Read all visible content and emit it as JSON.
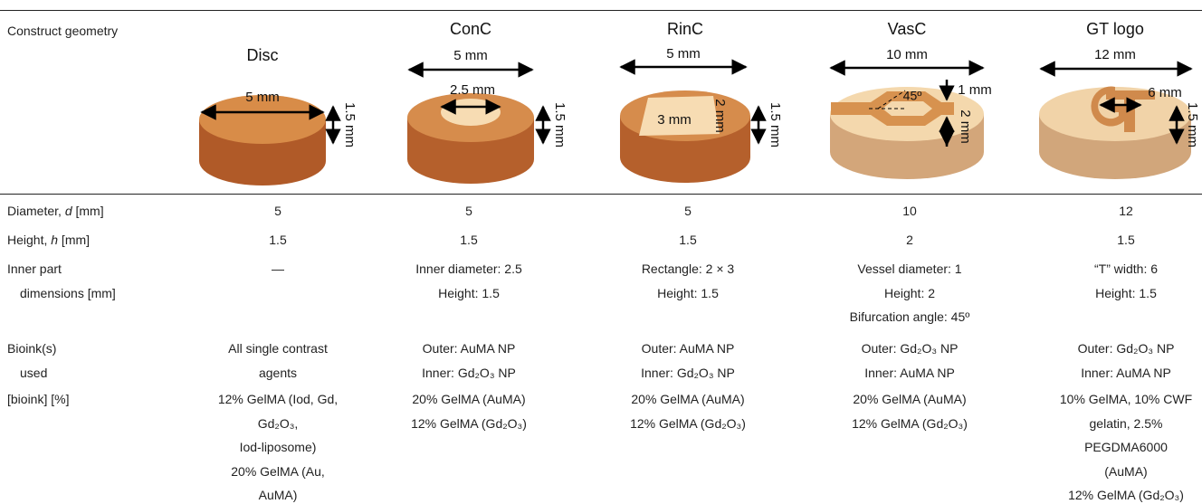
{
  "header": {
    "label": "Construct geometry"
  },
  "figures": [
    {
      "title": "Disc",
      "labels": [
        "5 mm",
        "1.5 mm"
      ]
    },
    {
      "title": "ConC",
      "labels": [
        "5 mm",
        "2.5 mm",
        "1.5 mm"
      ]
    },
    {
      "title": "RinC",
      "labels": [
        "5 mm",
        "2 mm",
        "3 mm",
        "1.5 mm"
      ]
    },
    {
      "title": "VasC",
      "labels": [
        "10 mm",
        "45º",
        "1 mm",
        "2 mm"
      ]
    },
    {
      "title": "GT logo",
      "labels": [
        "12 mm",
        "6 mm",
        "1.5 mm"
      ]
    }
  ],
  "rows": [
    {
      "label_lines": [
        [
          {
            "text": "Diameter, "
          },
          {
            "text": "d",
            "italic": true
          },
          {
            "text": " [mm]"
          }
        ]
      ],
      "cells": [
        [
          "5"
        ],
        [
          "5"
        ],
        [
          "5"
        ],
        [
          "10"
        ],
        [
          "12"
        ]
      ]
    },
    {
      "label_lines": [
        [
          {
            "text": "Height, "
          },
          {
            "text": "h",
            "italic": true
          },
          {
            "text": " [mm]"
          }
        ]
      ],
      "cells": [
        [
          "1.5"
        ],
        [
          "1.5"
        ],
        [
          "1.5"
        ],
        [
          "2"
        ],
        [
          "1.5"
        ]
      ]
    },
    {
      "label_lines": [
        [
          {
            "text": "Inner part"
          }
        ],
        [
          {
            "text": "dimensions [mm]"
          }
        ]
      ],
      "cells": [
        [
          "—"
        ],
        [
          "Inner diameter: 2.5",
          "Height: 1.5"
        ],
        [
          "Rectangle: 2 × 3",
          "Height: 1.5"
        ],
        [
          "Vessel diameter: 1",
          "Height: 2",
          "Bifurcation angle: 45º"
        ],
        [
          "“T” width: 6",
          "Height: 1.5"
        ]
      ]
    },
    {
      "label_lines": [
        [
          {
            "text": "Bioink(s)"
          }
        ],
        [
          {
            "text": "used"
          }
        ]
      ],
      "cells": [
        [
          "All single contrast",
          "agents"
        ],
        [
          "Outer: AuMA NP",
          "Inner: Gd₂O₃ NP"
        ],
        [
          "Outer: AuMA NP",
          "Inner: Gd₂O₃ NP"
        ],
        [
          "Outer: Gd₂O₃ NP",
          "Inner: AuMA NP"
        ],
        [
          "Outer: Gd₂O₃ NP",
          "Inner: AuMA NP"
        ]
      ]
    },
    {
      "label_lines": [
        [
          {
            "text": "[bioink] [%]"
          }
        ]
      ],
      "cells": [
        [
          "12% GelMA (Iod, Gd,",
          "Gd₂O₃,",
          "Iod-liposome)",
          "20% GelMA (Au,",
          "AuMA)"
        ],
        [
          "20% GelMA (AuMA)",
          "12% GelMA (Gd₂O₃)"
        ],
        [
          "20% GelMA (AuMA)",
          "12% GelMA (Gd₂O₃)"
        ],
        [
          "20% GelMA (AuMA)",
          "12% GelMA (Gd₂O₃)"
        ],
        [
          "10% GelMA, 10% CWF",
          "gelatin, 2.5%",
          "PEGDMA6000",
          "(AuMA)",
          "12% GelMA (Gd₂O₃)"
        ]
      ]
    }
  ]
}
